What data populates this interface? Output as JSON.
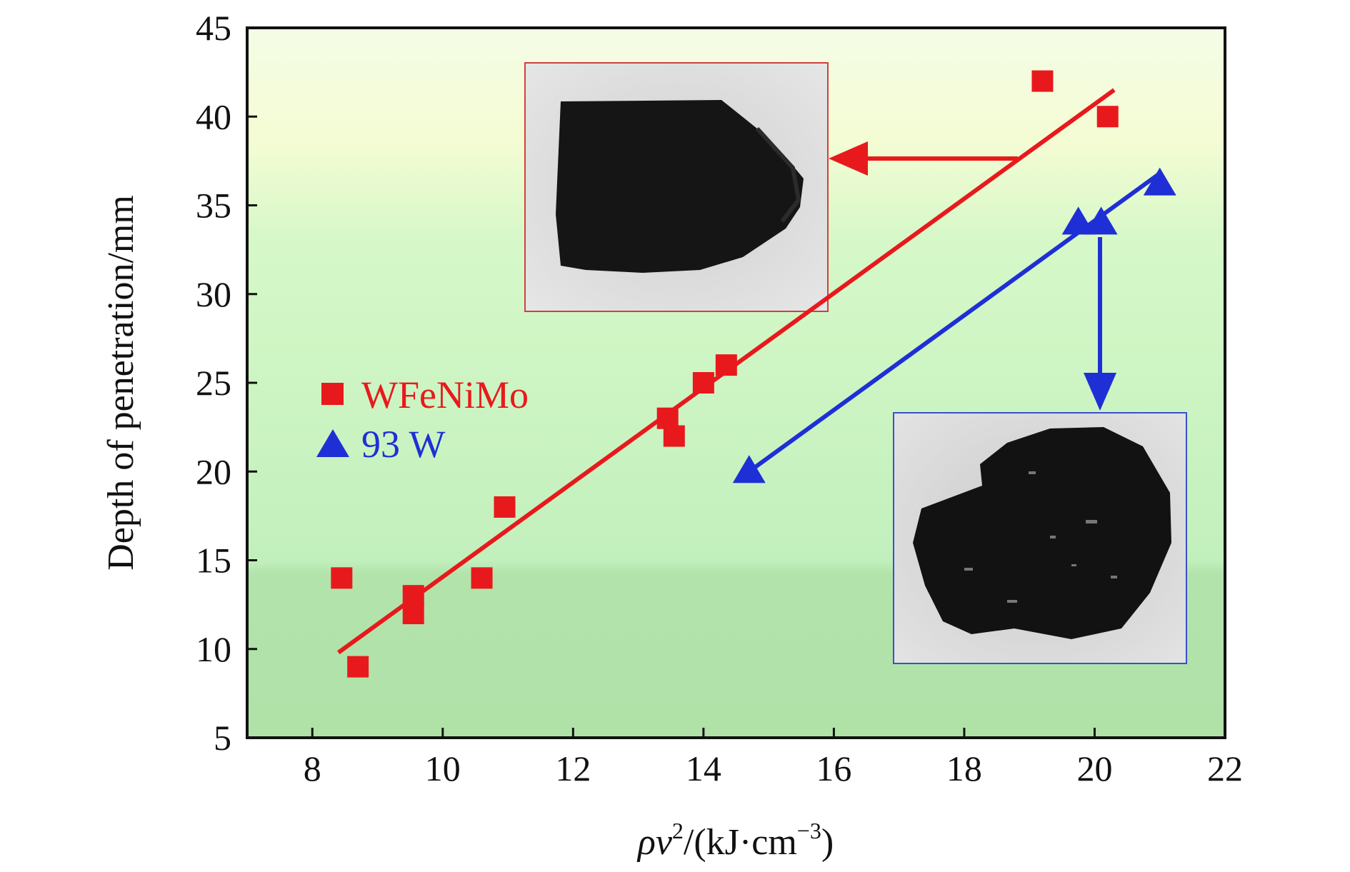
{
  "chart_data": {
    "type": "scatter",
    "xlabel": "ρv²/(kJ·cm⁻³)",
    "xlabel_parts": {
      "rho": "ρ",
      "v": "v",
      "sup2": "2",
      "rest": "/(kJ·cm",
      "sup_neg3": "−3",
      "close": ")"
    },
    "ylabel": "Depth of penetration/mm",
    "xlim": [
      7,
      22
    ],
    "ylim": [
      5,
      45
    ],
    "x_ticks": [
      8,
      10,
      12,
      14,
      16,
      18,
      20,
      22
    ],
    "y_ticks": [
      5,
      10,
      15,
      20,
      25,
      30,
      35,
      40,
      45
    ],
    "legend_position": "center-left",
    "series": [
      {
        "name": "WFeNiMo",
        "marker": "square",
        "color": "#e8191c",
        "points": [
          [
            8.45,
            14
          ],
          [
            8.7,
            9
          ],
          [
            9.55,
            12
          ],
          [
            9.55,
            13
          ],
          [
            10.6,
            14
          ],
          [
            10.95,
            18
          ],
          [
            13.45,
            23
          ],
          [
            13.55,
            22
          ],
          [
            14.0,
            25
          ],
          [
            14.35,
            26
          ],
          [
            19.2,
            42
          ],
          [
            20.2,
            40
          ]
        ],
        "fit_line": [
          [
            8.4,
            9.8
          ],
          [
            20.3,
            41.5
          ]
        ]
      },
      {
        "name": "93 W",
        "marker": "triangle",
        "color": "#1f2fd6",
        "points": [
          [
            14.7,
            20
          ],
          [
            19.75,
            34
          ],
          [
            20.1,
            34
          ],
          [
            21.0,
            36.2
          ]
        ],
        "fit_line": [
          [
            14.7,
            20
          ],
          [
            21.0,
            36.8
          ]
        ]
      }
    ]
  }
}
